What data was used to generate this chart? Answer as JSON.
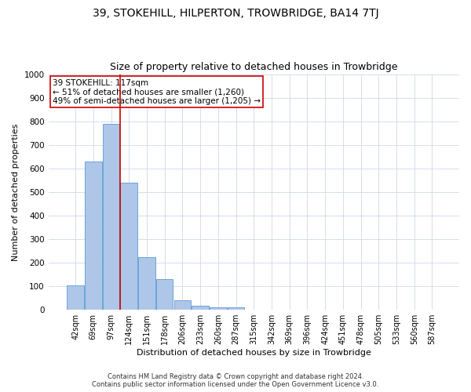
{
  "title": "39, STOKEHILL, HILPERTON, TROWBRIDGE, BA14 7TJ",
  "subtitle": "Size of property relative to detached houses in Trowbridge",
  "xlabel": "Distribution of detached houses by size in Trowbridge",
  "ylabel": "Number of detached properties",
  "categories": [
    "42sqm",
    "69sqm",
    "97sqm",
    "124sqm",
    "151sqm",
    "178sqm",
    "206sqm",
    "233sqm",
    "260sqm",
    "287sqm",
    "315sqm",
    "342sqm",
    "369sqm",
    "396sqm",
    "424sqm",
    "451sqm",
    "478sqm",
    "505sqm",
    "533sqm",
    "560sqm",
    "587sqm"
  ],
  "values": [
    103,
    628,
    790,
    540,
    222,
    132,
    42,
    17,
    10,
    10,
    0,
    0,
    0,
    0,
    0,
    0,
    0,
    0,
    0,
    0,
    0
  ],
  "bar_color": "#aec6e8",
  "bar_edge_color": "#5b9bd5",
  "vline_color": "#cc0000",
  "vline_x_index": 3.0,
  "annotation_text": "39 STOKEHILL: 117sqm\n← 51% of detached houses are smaller (1,260)\n49% of semi-detached houses are larger (1,205) →",
  "annotation_box_color": "#ffffff",
  "annotation_box_edge": "#cc0000",
  "ylim": [
    0,
    1000
  ],
  "yticks": [
    0,
    100,
    200,
    300,
    400,
    500,
    600,
    700,
    800,
    900,
    1000
  ],
  "footer1": "Contains HM Land Registry data © Crown copyright and database right 2024.",
  "footer2": "Contains public sector information licensed under the Open Government Licence v3.0.",
  "bg_color": "#ffffff",
  "grid_color": "#d0d8e8",
  "title_fontsize": 10,
  "subtitle_fontsize": 9,
  "tick_fontsize": 7,
  "ylabel_fontsize": 8,
  "xlabel_fontsize": 8,
  "footer_fontsize": 6,
  "ann_fontsize": 7.5
}
